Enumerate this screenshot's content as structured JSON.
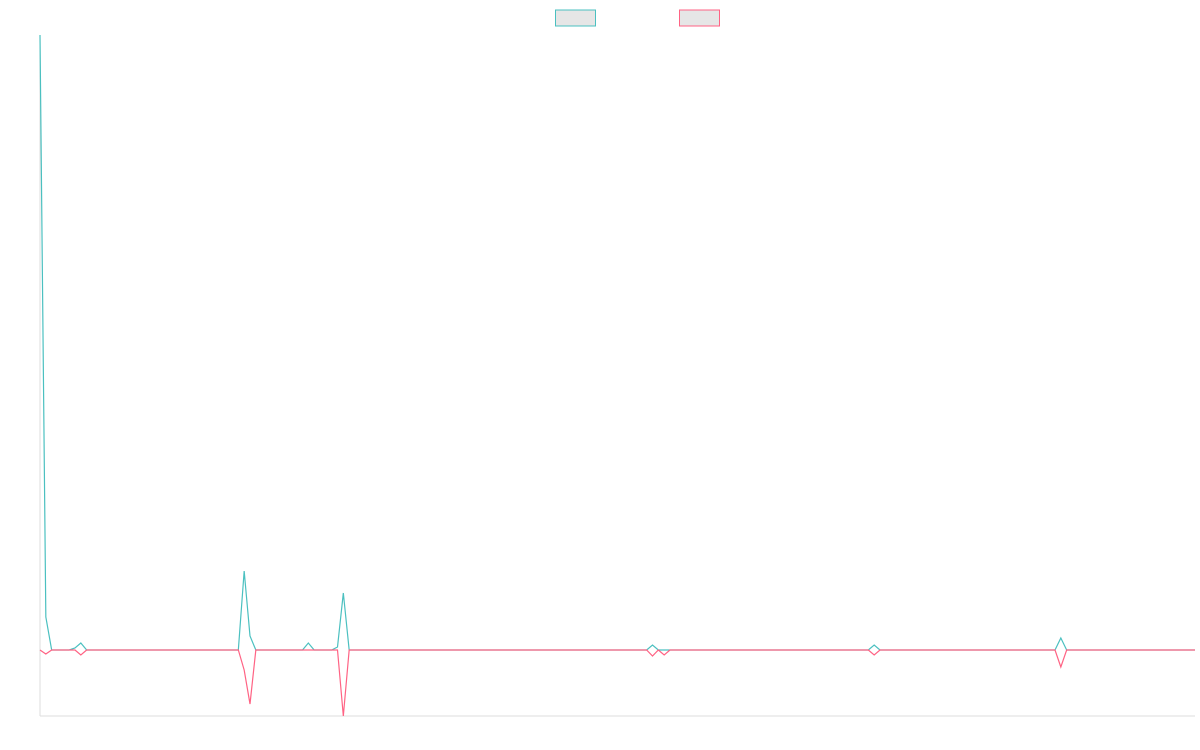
{
  "chart_data": {
    "type": "line",
    "legend": "top",
    "ylim": [
      -66,
      615
    ],
    "series": [
      {
        "color": "#4bc0c0",
        "values": [
          615,
          33,
          0,
          0,
          0,
          0,
          2,
          7,
          0,
          0,
          0,
          0,
          0,
          0,
          0,
          0,
          0,
          0,
          0,
          0,
          0,
          0,
          0,
          0,
          0,
          0,
          0,
          0,
          0,
          0,
          0,
          0,
          0,
          0,
          0,
          79,
          14,
          0,
          0,
          0,
          0,
          0,
          0,
          0,
          0,
          0,
          7,
          0,
          0,
          0,
          0,
          3,
          57,
          0,
          0,
          0,
          0,
          0,
          0,
          0,
          0,
          0,
          0,
          0,
          0,
          0,
          0,
          0,
          0,
          0,
          0,
          0,
          0,
          0,
          0,
          0,
          0,
          0,
          0,
          0,
          0,
          0,
          0,
          0,
          0,
          0,
          0,
          0,
          0,
          0,
          0,
          0,
          0,
          0,
          0,
          0,
          0,
          0,
          0,
          0,
          0,
          0,
          0,
          0,
          0,
          5,
          0,
          0,
          0,
          0,
          0,
          0,
          0,
          0,
          0,
          0,
          0,
          0,
          0,
          0,
          0,
          0,
          0,
          0,
          0,
          0,
          0,
          0,
          0,
          0,
          0,
          0,
          0,
          0,
          0,
          0,
          0,
          0,
          0,
          0,
          0,
          0,
          0,
          5,
          0,
          0,
          0,
          0,
          0,
          0,
          0,
          0,
          0,
          0,
          0,
          0,
          0,
          0,
          0,
          0,
          0,
          0,
          0,
          0,
          0,
          0,
          0,
          0,
          0,
          0,
          0,
          0,
          0,
          0,
          0,
          12,
          0,
          0,
          0,
          0,
          0,
          0,
          0,
          0,
          0,
          0,
          0,
          0,
          0,
          0,
          0,
          0,
          0,
          0,
          0,
          0,
          0,
          0,
          0
        ]
      },
      {
        "color": "#ff6384",
        "values": [
          0,
          -4,
          0,
          0,
          0,
          0,
          0,
          -5,
          0,
          0,
          0,
          0,
          0,
          0,
          0,
          0,
          0,
          0,
          0,
          0,
          0,
          0,
          0,
          0,
          0,
          0,
          0,
          0,
          0,
          0,
          0,
          0,
          0,
          0,
          0,
          -20,
          -54,
          0,
          0,
          0,
          0,
          0,
          0,
          0,
          0,
          0,
          0,
          0,
          0,
          0,
          0,
          0,
          -66,
          0,
          0,
          0,
          0,
          0,
          0,
          0,
          0,
          0,
          0,
          0,
          0,
          0,
          0,
          0,
          0,
          0,
          0,
          0,
          0,
          0,
          0,
          0,
          0,
          0,
          0,
          0,
          0,
          0,
          0,
          0,
          0,
          0,
          0,
          0,
          0,
          0,
          0,
          0,
          0,
          0,
          0,
          0,
          0,
          0,
          0,
          0,
          0,
          0,
          0,
          0,
          0,
          -6,
          0,
          -5,
          0,
          0,
          0,
          0,
          0,
          0,
          0,
          0,
          0,
          0,
          0,
          0,
          0,
          0,
          0,
          0,
          0,
          0,
          0,
          0,
          0,
          0,
          0,
          0,
          0,
          0,
          0,
          0,
          0,
          0,
          0,
          0,
          0,
          0,
          0,
          -5,
          0,
          0,
          0,
          0,
          0,
          0,
          0,
          0,
          0,
          0,
          0,
          0,
          0,
          0,
          0,
          0,
          0,
          0,
          0,
          0,
          0,
          0,
          0,
          0,
          0,
          0,
          0,
          0,
          0,
          0,
          0,
          -17,
          0,
          0,
          0,
          0,
          0,
          0,
          0,
          0,
          0,
          0,
          0,
          0,
          0,
          0,
          0,
          0,
          0,
          0,
          0,
          0,
          0,
          0,
          0
        ]
      }
    ]
  }
}
